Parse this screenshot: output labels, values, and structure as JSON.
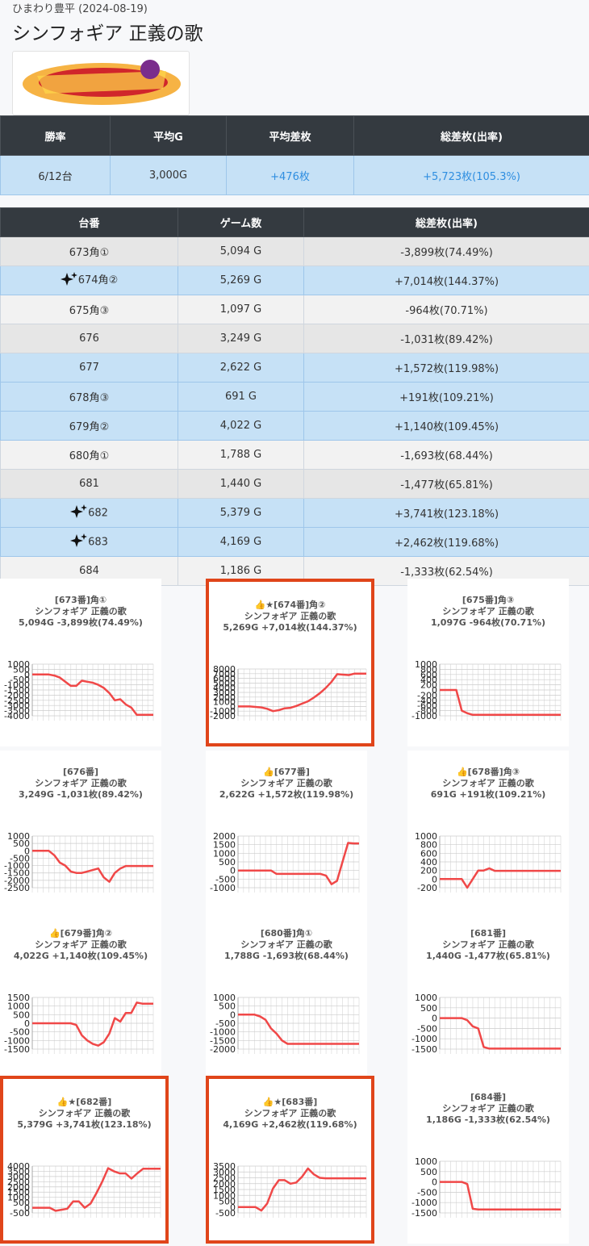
{
  "header": {
    "store": "ひまわり豊平 (2024-08-19)",
    "title": "シンフォギア 正義の歌"
  },
  "summary": {
    "headers": [
      "勝率",
      "平均G",
      "平均差枚",
      "総差枚(出率)"
    ],
    "values": [
      "6/12台",
      "3,000G",
      "+476枚",
      "+5,723枚(105.3%)"
    ]
  },
  "machines": {
    "headers": [
      "台番",
      "ゲーム数",
      "総差枚(出率)"
    ],
    "rows": [
      {
        "cells": [
          "673角①",
          "5,094 G",
          "-3,899枚(74.49%)"
        ],
        "highlighted": false,
        "icon": false
      },
      {
        "cells": [
          "674角②",
          "5,269 G",
          "+7,014枚(144.37%)"
        ],
        "highlighted": true,
        "icon": true
      },
      {
        "cells": [
          "675角③",
          "1,097 G",
          "-964枚(70.71%)"
        ],
        "highlighted": false,
        "icon": false
      },
      {
        "cells": [
          "676",
          "3,249 G",
          "-1,031枚(89.42%)"
        ],
        "highlighted": false,
        "icon": false
      },
      {
        "cells": [
          "677",
          "2,622 G",
          "+1,572枚(119.98%)"
        ],
        "highlighted": true,
        "icon": false
      },
      {
        "cells": [
          "678角③",
          "691 G",
          "+191枚(109.21%)"
        ],
        "highlighted": true,
        "icon": false
      },
      {
        "cells": [
          "679角②",
          "4,022 G",
          "+1,140枚(109.45%)"
        ],
        "highlighted": true,
        "icon": false
      },
      {
        "cells": [
          "680角①",
          "1,788 G",
          "-1,693枚(68.44%)"
        ],
        "highlighted": false,
        "icon": false
      },
      {
        "cells": [
          "681",
          "1,440 G",
          "-1,477枚(65.81%)"
        ],
        "highlighted": false,
        "icon": false
      },
      {
        "cells": [
          "682",
          "5,379 G",
          "+3,741枚(123.18%)"
        ],
        "highlighted": true,
        "icon": true
      },
      {
        "cells": [
          "683",
          "4,169 G",
          "+2,462枚(119.68%)"
        ],
        "highlighted": true,
        "icon": true
      },
      {
        "cells": [
          "684",
          "1,186 G",
          "-1,333枚(62.54%)"
        ],
        "highlighted": false,
        "icon": false
      }
    ]
  },
  "charts": [
    {
      "type": "line",
      "title": [
        "[673番]角①",
        "シンフォギア 正義の歌",
        "5,094G -3,899枚(74.49%)"
      ],
      "highlighted": false,
      "color": "#f04848",
      "ylim": [
        -4000,
        1000
      ],
      "yticks": [
        1000,
        500,
        0,
        -500,
        -1000,
        -1500,
        -2000,
        -2500,
        -3000,
        -3500,
        -4000
      ],
      "values": [
        0,
        0,
        0,
        0,
        -100,
        -300,
        -700,
        -1100,
        -1100,
        -600,
        -700,
        -800,
        -1000,
        -1300,
        -1800,
        -2500,
        -2400,
        -2900,
        -3200,
        -3899,
        -3899,
        -3899,
        -3899
      ]
    },
    {
      "type": "line",
      "title": [
        "👍★[674番]角②",
        "シンフォギア 正義の歌",
        "5,269G +7,014枚(144.37%)"
      ],
      "highlighted": true,
      "color": "#f04848",
      "ylim": [
        -2000,
        8000
      ],
      "yticks": [
        8000,
        7000,
        6000,
        5000,
        4000,
        3000,
        2000,
        1000,
        0,
        -1000,
        -2000
      ],
      "values": [
        0,
        0,
        0,
        -100,
        -200,
        -500,
        -1000,
        -800,
        -400,
        -300,
        100,
        600,
        1100,
        1900,
        2800,
        3900,
        5200,
        6900,
        6800,
        6700,
        7014,
        7014,
        7014
      ]
    },
    {
      "type": "line",
      "title": [
        "[675番]角③",
        "シンフォギア 正義の歌",
        "1,097G -964枚(70.71%)"
      ],
      "highlighted": false,
      "color": "#f04848",
      "ylim": [
        -1000,
        1000
      ],
      "yticks": [
        1000,
        800,
        600,
        400,
        200,
        0,
        -200,
        -400,
        -600,
        -800,
        -1000
      ],
      "values": [
        0,
        0,
        0,
        0,
        -800,
        -900,
        -964,
        -964,
        -964,
        -964,
        -964,
        -964,
        -964,
        -964,
        -964,
        -964,
        -964,
        -964,
        -964,
        -964,
        -964,
        -964,
        -964
      ]
    },
    {
      "type": "line",
      "title": [
        "[676番]",
        "シンフォギア 正義の歌",
        "3,249G -1,031枚(89.42%)"
      ],
      "highlighted": false,
      "color": "#f04848",
      "ylim": [
        -2500,
        1000
      ],
      "yticks": [
        1000,
        500,
        0,
        -500,
        -1000,
        -1500,
        -2000,
        -2500
      ],
      "values": [
        0,
        0,
        0,
        0,
        -300,
        -800,
        -1000,
        -1400,
        -1500,
        -1500,
        -1400,
        -1300,
        -1200,
        -1800,
        -2100,
        -1500,
        -1200,
        -1031,
        -1031,
        -1031,
        -1031,
        -1031,
        -1031
      ]
    },
    {
      "type": "line",
      "title": [
        "👍[677番]",
        "シンフォギア 正義の歌",
        "2,622G +1,572枚(119.98%)"
      ],
      "highlighted": false,
      "color": "#f04848",
      "ylim": [
        -1000,
        2000
      ],
      "yticks": [
        2000,
        1500,
        1000,
        500,
        0,
        -500,
        -1000
      ],
      "values": [
        0,
        0,
        0,
        0,
        0,
        0,
        0,
        -200,
        -200,
        -200,
        -200,
        -200,
        -200,
        -200,
        -200,
        -200,
        -300,
        -800,
        -600,
        500,
        1600,
        1572,
        1572
      ]
    },
    {
      "type": "line",
      "title": [
        "👍[678番]角③",
        "シンフォギア 正義の歌",
        "691G +191枚(109.21%)"
      ],
      "highlighted": false,
      "color": "#f04848",
      "ylim": [
        -200,
        1000
      ],
      "yticks": [
        1000,
        800,
        600,
        400,
        200,
        0,
        -200
      ],
      "values": [
        0,
        0,
        0,
        0,
        0,
        -200,
        0,
        200,
        200,
        250,
        191,
        191,
        191,
        191,
        191,
        191,
        191,
        191,
        191,
        191,
        191,
        191,
        191
      ]
    },
    {
      "type": "line",
      "title": [
        "👍[679番]角②",
        "シンフォギア 正義の歌",
        "4,022G +1,140枚(109.45%)"
      ],
      "highlighted": false,
      "color": "#f04848",
      "ylim": [
        -1500,
        1500
      ],
      "yticks": [
        1500,
        1000,
        500,
        0,
        -500,
        -1000,
        -1500
      ],
      "values": [
        0,
        0,
        0,
        0,
        0,
        0,
        0,
        0,
        -100,
        -700,
        -1000,
        -1200,
        -1300,
        -1100,
        -600,
        300,
        100,
        600,
        600,
        1200,
        1140,
        1140,
        1140
      ]
    },
    {
      "type": "line",
      "title": [
        "[680番]角①",
        "シンフォギア 正義の歌",
        "1,788G -1,693枚(68.44%)"
      ],
      "highlighted": false,
      "color": "#f04848",
      "ylim": [
        -2000,
        1000
      ],
      "yticks": [
        1000,
        500,
        0,
        -500,
        -1000,
        -1500,
        -2000
      ],
      "values": [
        0,
        0,
        0,
        0,
        -100,
        -300,
        -800,
        -1100,
        -1500,
        -1693,
        -1693,
        -1693,
        -1693,
        -1693,
        -1693,
        -1693,
        -1693,
        -1693,
        -1693,
        -1693,
        -1693,
        -1693,
        -1693
      ]
    },
    {
      "type": "line",
      "title": [
        "[681番]",
        "シンフォギア 正義の歌",
        "1,440G -1,477枚(65.81%)"
      ],
      "highlighted": false,
      "color": "#f04848",
      "ylim": [
        -1500,
        1000
      ],
      "yticks": [
        1000,
        500,
        0,
        -500,
        -1000,
        -1500
      ],
      "values": [
        0,
        0,
        0,
        0,
        0,
        -100,
        -400,
        -500,
        -1400,
        -1477,
        -1477,
        -1477,
        -1477,
        -1477,
        -1477,
        -1477,
        -1477,
        -1477,
        -1477,
        -1477,
        -1477,
        -1477,
        -1477
      ]
    },
    {
      "type": "line",
      "title": [
        "👍★[682番]",
        "シンフォギア 正義の歌",
        "5,379G +3,741枚(123.18%)"
      ],
      "highlighted": true,
      "color": "#f04848",
      "ylim": [
        -500,
        4000
      ],
      "yticks": [
        4000,
        3500,
        3000,
        2500,
        2000,
        1500,
        1000,
        500,
        0,
        -500
      ],
      "values": [
        0,
        0,
        0,
        0,
        -300,
        -200,
        -100,
        600,
        600,
        0,
        400,
        1400,
        2500,
        3800,
        3500,
        3300,
        3300,
        2800,
        3300,
        3741,
        3741,
        3741,
        3741
      ]
    },
    {
      "type": "line",
      "title": [
        "👍★[683番]",
        "シンフォギア 正義の歌",
        "4,169G +2,462枚(119.68%)"
      ],
      "highlighted": true,
      "color": "#f04848",
      "ylim": [
        -500,
        3500
      ],
      "yticks": [
        3500,
        3000,
        2500,
        2000,
        1500,
        1000,
        500,
        0,
        -500
      ],
      "values": [
        0,
        0,
        0,
        0,
        -300,
        300,
        1600,
        2300,
        2300,
        2000,
        2100,
        2600,
        3300,
        2800,
        2500,
        2462,
        2462,
        2462,
        2462,
        2462,
        2462,
        2462,
        2462
      ]
    },
    {
      "type": "line",
      "title": [
        "[684番]",
        "シンフォギア 正義の歌",
        "1,186G -1,333枚(62.54%)"
      ],
      "highlighted": false,
      "color": "#f04848",
      "ylim": [
        -1500,
        1000
      ],
      "yticks": [
        1000,
        500,
        0,
        -500,
        -1000,
        -1500
      ],
      "values": [
        0,
        0,
        0,
        0,
        0,
        -100,
        -1300,
        -1333,
        -1333,
        -1333,
        -1333,
        -1333,
        -1333,
        -1333,
        -1333,
        -1333,
        -1333,
        -1333,
        -1333,
        -1333,
        -1333,
        -1333,
        -1333
      ]
    }
  ]
}
